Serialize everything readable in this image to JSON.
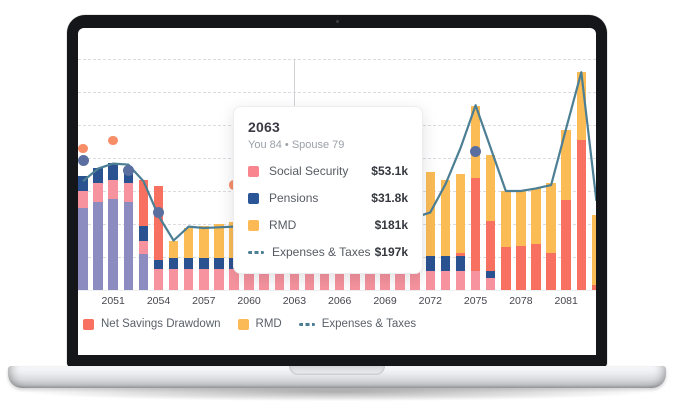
{
  "tooltip": {
    "title": "2063",
    "subtitle": "You 84 • Spouse 79",
    "rows": [
      {
        "label": "Social Security",
        "value": "$53.1k",
        "swatch": "square",
        "color": "#f9868e"
      },
      {
        "label": "Pensions",
        "value": "$31.8k",
        "swatch": "square",
        "color": "#2a5697"
      },
      {
        "label": "RMD",
        "value": "$181k",
        "swatch": "square",
        "color": "#fbba55"
      },
      {
        "label": "Expenses & Taxes",
        "value": "$197k",
        "swatch": "dashes",
        "color": "#4c7e94"
      }
    ]
  },
  "legend": {
    "items": [
      {
        "label": "Net Savings Drawdown",
        "swatch": "square",
        "color": "#f8705f"
      },
      {
        "label": "RMD",
        "swatch": "square",
        "color": "#fbba55"
      },
      {
        "label": "Expenses & Taxes",
        "swatch": "dashes",
        "color": "#4c7e94"
      }
    ]
  },
  "chart_data": {
    "type": "stacked-bar+line+scatter",
    "units": "$k",
    "years": [
      2049,
      2050,
      2051,
      2052,
      2053,
      2054,
      2055,
      2056,
      2057,
      2058,
      2059,
      2060,
      2061,
      2062,
      2063,
      2064,
      2065,
      2066,
      2067,
      2068,
      2069,
      2070,
      2071,
      2072,
      2073,
      2074,
      2075,
      2076,
      2077,
      2078,
      2079,
      2080,
      2081,
      2082,
      2083
    ],
    "x_ticks": [
      2051,
      2054,
      2057,
      2060,
      2063,
      2066,
      2069,
      2072,
      2075,
      2078,
      2081
    ],
    "ylim": [
      0,
      730
    ],
    "gridline_step": 100,
    "grid": "dashed-horizontal, no y-axis labels",
    "series": [
      {
        "key": "purple",
        "label": "",
        "color": "#8d8cc0",
        "values": [
          250,
          268,
          275,
          268,
          108,
          0,
          0,
          0,
          0,
          0,
          0,
          0,
          0,
          0,
          0,
          0,
          0,
          0,
          0,
          0,
          0,
          0,
          0,
          0,
          0,
          0,
          0,
          0,
          0,
          0,
          0,
          0,
          0,
          0,
          0
        ]
      },
      {
        "key": "social_security",
        "label": "Social Security",
        "color": "#f7939e",
        "values": [
          50,
          55,
          58,
          55,
          40,
          63,
          63,
          63,
          63,
          63,
          63,
          70,
          60,
          57,
          53.1,
          53,
          53,
          53,
          53,
          53,
          56,
          58,
          58,
          59,
          59,
          59,
          59,
          35,
          0,
          0,
          0,
          0,
          0,
          0,
          0
        ]
      },
      {
        "key": "pensions",
        "label": "Pensions",
        "color": "#2a5190",
        "values": [
          45,
          48,
          52,
          50,
          45,
          28,
          35,
          35,
          35,
          35,
          35,
          25,
          34,
          33,
          31.8,
          32,
          32,
          32,
          32,
          32,
          36,
          40,
          42,
          44,
          44,
          44,
          0,
          24,
          0,
          0,
          0,
          0,
          0,
          0,
          0
        ]
      },
      {
        "key": "net_savings_drawdown",
        "label": "Net Savings Drawdown",
        "color": "#f8705f",
        "values": [
          0,
          0,
          0,
          0,
          140,
          224,
          0,
          0,
          0,
          0,
          0,
          0,
          0,
          0,
          0,
          0,
          0,
          0,
          0,
          0,
          0,
          0,
          0,
          0,
          0,
          8,
          280,
          150,
          130,
          132,
          138,
          112,
          273,
          456,
          15
        ]
      },
      {
        "key": "rmd",
        "label": "RMD",
        "color": "#fbbc55",
        "values": [
          0,
          0,
          0,
          0,
          0,
          0,
          52,
          90,
          95,
          102,
          108,
          121,
          130,
          155,
          181,
          175,
          180,
          185,
          190,
          200,
          210,
          225,
          240,
          256,
          230,
          240,
          220,
          200,
          170,
          170,
          172,
          212,
          212,
          206,
          212
        ]
      }
    ],
    "line": {
      "name": "Expenses & Taxes",
      "color": "#4c7e94",
      "values": [
        330,
        368,
        383,
        380,
        330,
        225,
        150,
        192,
        188,
        190,
        192,
        195,
        196,
        197,
        197,
        197,
        198,
        199,
        200,
        202,
        205,
        210,
        220,
        235,
        320,
        430,
        560,
        430,
        300,
        300,
        308,
        318,
        490,
        660,
        270
      ]
    },
    "scatter": {
      "colors": {
        "orange": "#f78e68",
        "blue": "#5a6fa0"
      },
      "points": [
        {
          "year": 2049,
          "value": 429,
          "series": "orange"
        },
        {
          "year": 2049,
          "value": 391,
          "series": "blue"
        },
        {
          "year": 2051,
          "value": 453,
          "series": "orange"
        },
        {
          "year": 2052,
          "value": 362,
          "series": "blue"
        },
        {
          "year": 2054,
          "value": 235,
          "series": "blue"
        },
        {
          "year": 2059,
          "value": 318,
          "series": "orange"
        },
        {
          "year": 2075,
          "value": 420,
          "series": "blue"
        }
      ]
    },
    "tooltip_anchor_year": 2063
  }
}
